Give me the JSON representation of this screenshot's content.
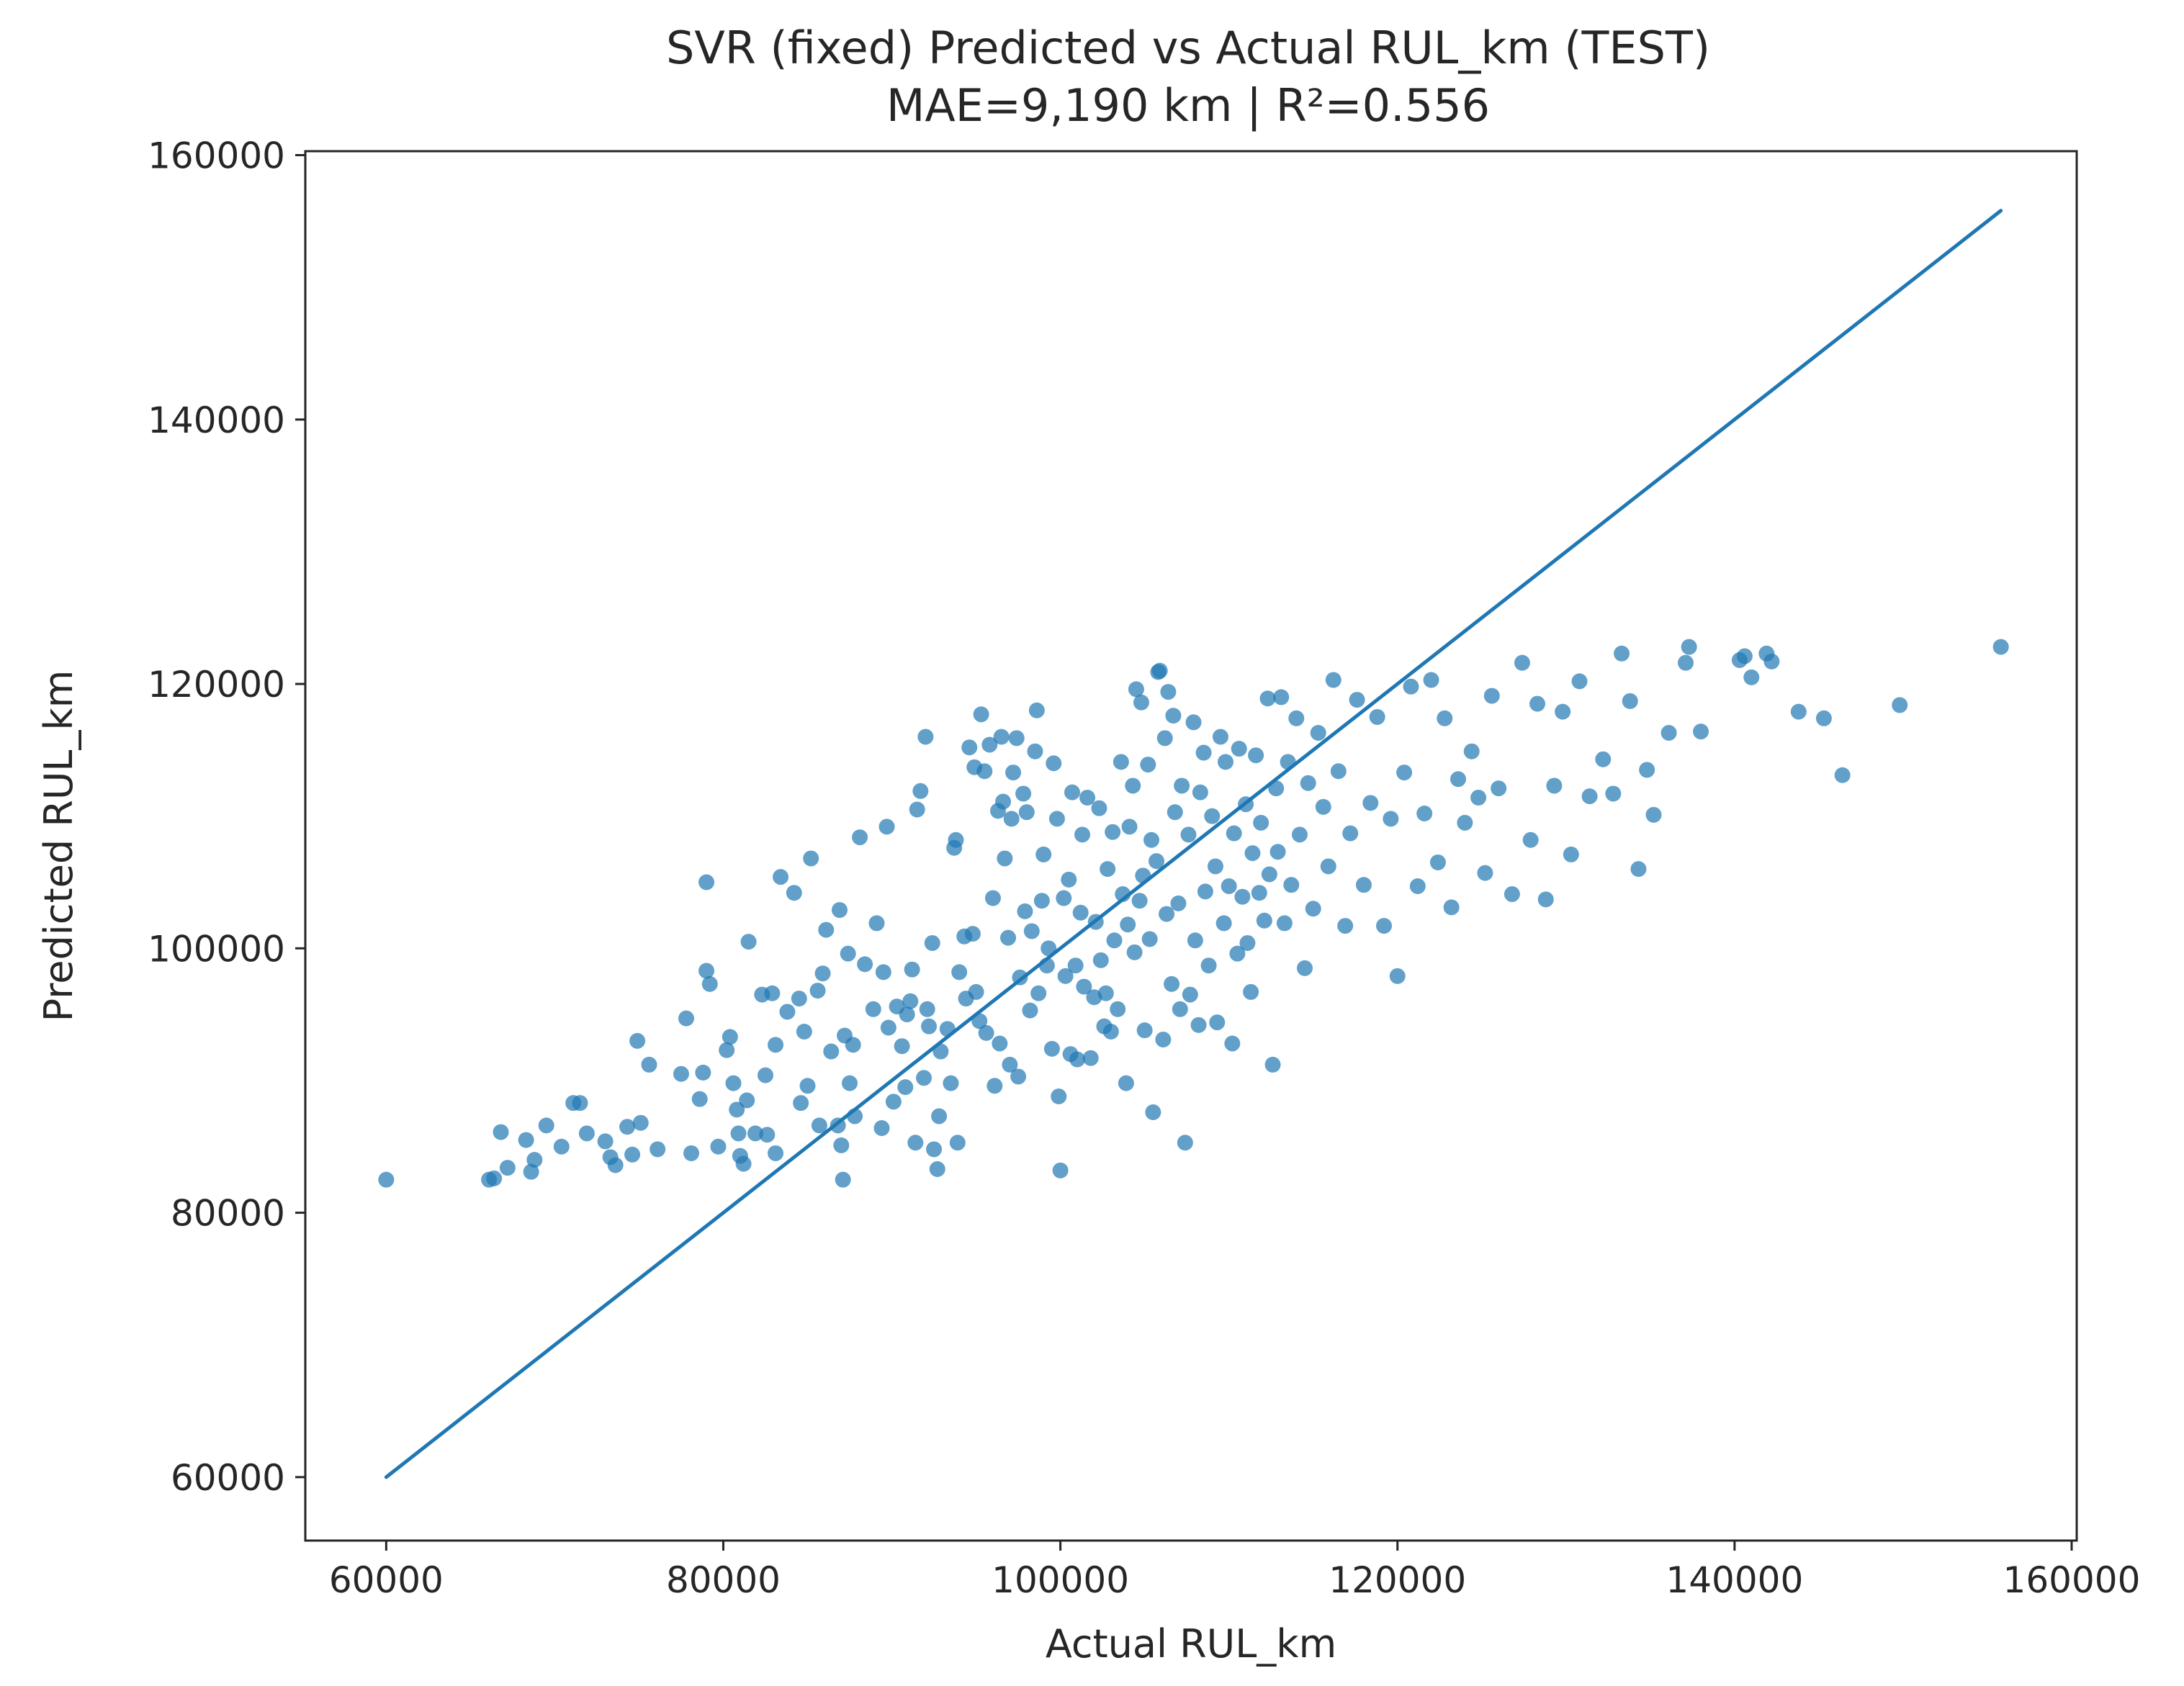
{
  "chart_data": {
    "type": "scatter",
    "title": "SVR (fixed) Predicted vs Actual RUL_km (TEST)",
    "subtitle": "MAE=9,190 km | R²=0.556",
    "xlabel": "Actual RUL_km",
    "ylabel": "Predicted RUL_km",
    "xlim": [
      55200,
      160300
    ],
    "ylim": [
      55200,
      160300
    ],
    "xticks": [
      60000,
      80000,
      100000,
      120000,
      140000,
      160000
    ],
    "yticks": [
      60000,
      80000,
      100000,
      120000,
      140000,
      160000
    ],
    "grid": false,
    "legend": "none",
    "colors": {
      "points": "#1f77b4",
      "line": "#1f77b4",
      "axes": "#262626"
    },
    "reference_line": {
      "name": "ideal y=x",
      "x": [
        60000,
        155800
      ],
      "y": [
        60000,
        155800
      ]
    },
    "series": [
      {
        "name": "test predictions",
        "points": [
          [
            60000,
            82500
          ],
          [
            66100,
            82500
          ],
          [
            66400,
            82600
          ],
          [
            66800,
            86100
          ],
          [
            67200,
            83400
          ],
          [
            68300,
            85500
          ],
          [
            68600,
            83100
          ],
          [
            68800,
            84000
          ],
          [
            69500,
            86600
          ],
          [
            70400,
            85000
          ],
          [
            71100,
            88300
          ],
          [
            71500,
            88300
          ],
          [
            71900,
            86000
          ],
          [
            73000,
            85400
          ],
          [
            73300,
            84200
          ],
          [
            73600,
            83600
          ],
          [
            74300,
            86500
          ],
          [
            74600,
            84400
          ],
          [
            74900,
            93000
          ],
          [
            75100,
            86800
          ],
          [
            75600,
            91200
          ],
          [
            76100,
            84800
          ],
          [
            77500,
            90500
          ],
          [
            77800,
            94700
          ],
          [
            78100,
            84500
          ],
          [
            78600,
            88600
          ],
          [
            78800,
            90600
          ],
          [
            79000,
            98300
          ],
          [
            79200,
            97300
          ],
          [
            79000,
            105000
          ],
          [
            79700,
            85000
          ],
          [
            80200,
            92300
          ],
          [
            80400,
            93300
          ],
          [
            80600,
            89800
          ],
          [
            80800,
            87800
          ],
          [
            80900,
            86000
          ],
          [
            81000,
            84300
          ],
          [
            81200,
            83700
          ],
          [
            81400,
            88500
          ],
          [
            81500,
            100500
          ],
          [
            81900,
            86000
          ],
          [
            82300,
            96500
          ],
          [
            82600,
            85900
          ],
          [
            82500,
            90400
          ],
          [
            82900,
            96600
          ],
          [
            83100,
            92700
          ],
          [
            83100,
            84500
          ],
          [
            83400,
            105400
          ],
          [
            83800,
            95200
          ],
          [
            84200,
            104200
          ],
          [
            84500,
            96200
          ],
          [
            84600,
            88300
          ],
          [
            84800,
            93700
          ],
          [
            85000,
            89600
          ],
          [
            85200,
            106800
          ],
          [
            85600,
            96800
          ],
          [
            85700,
            86600
          ],
          [
            85900,
            98100
          ],
          [
            86100,
            101400
          ],
          [
            86400,
            92200
          ],
          [
            86800,
            86600
          ],
          [
            86900,
            102900
          ],
          [
            87000,
            85100
          ],
          [
            87100,
            82500
          ],
          [
            87200,
            93400
          ],
          [
            87400,
            99600
          ],
          [
            87500,
            89800
          ],
          [
            87700,
            92700
          ],
          [
            87800,
            87300
          ],
          [
            88100,
            108400
          ],
          [
            88400,
            98800
          ],
          [
            88900,
            95400
          ],
          [
            89100,
            101900
          ],
          [
            89400,
            86400
          ],
          [
            89500,
            98200
          ],
          [
            89700,
            109200
          ],
          [
            89800,
            94000
          ],
          [
            90100,
            88400
          ],
          [
            90300,
            95600
          ],
          [
            90600,
            92600
          ],
          [
            90800,
            89500
          ],
          [
            90900,
            95000
          ],
          [
            91100,
            96000
          ],
          [
            91200,
            98400
          ],
          [
            91400,
            85300
          ],
          [
            91500,
            110500
          ],
          [
            91700,
            111900
          ],
          [
            91900,
            90200
          ],
          [
            92000,
            116000
          ],
          [
            92100,
            95400
          ],
          [
            92200,
            94100
          ],
          [
            92400,
            100400
          ],
          [
            92500,
            84800
          ],
          [
            92700,
            83300
          ],
          [
            92800,
            87300
          ],
          [
            92900,
            92200
          ],
          [
            93300,
            93900
          ],
          [
            93500,
            89800
          ],
          [
            93700,
            107600
          ],
          [
            93800,
            108200
          ],
          [
            93900,
            85300
          ],
          [
            94000,
            98200
          ],
          [
            94300,
            100900
          ],
          [
            94400,
            96200
          ],
          [
            94600,
            115200
          ],
          [
            94800,
            101100
          ],
          [
            94900,
            113700
          ],
          [
            95000,
            96700
          ],
          [
            95200,
            94500
          ],
          [
            95300,
            117700
          ],
          [
            95500,
            113400
          ],
          [
            95600,
            93600
          ],
          [
            95800,
            115400
          ],
          [
            96000,
            103800
          ],
          [
            96100,
            89600
          ],
          [
            96300,
            110400
          ],
          [
            96400,
            92800
          ],
          [
            96500,
            116000
          ],
          [
            96600,
            111100
          ],
          [
            96700,
            106800
          ],
          [
            96900,
            100800
          ],
          [
            97000,
            91200
          ],
          [
            97100,
            109800
          ],
          [
            97200,
            113300
          ],
          [
            97400,
            115900
          ],
          [
            97500,
            90300
          ],
          [
            97600,
            97800
          ],
          [
            97800,
            111700
          ],
          [
            97900,
            102800
          ],
          [
            98000,
            110300
          ],
          [
            98200,
            95300
          ],
          [
            98300,
            101300
          ],
          [
            98500,
            114900
          ],
          [
            98600,
            118000
          ],
          [
            98700,
            96600
          ],
          [
            98900,
            103600
          ],
          [
            99000,
            107100
          ],
          [
            99200,
            98700
          ],
          [
            99300,
            100000
          ],
          [
            99500,
            92400
          ],
          [
            99600,
            114000
          ],
          [
            99800,
            109800
          ],
          [
            99900,
            88800
          ],
          [
            100000,
            83200
          ],
          [
            100200,
            103800
          ],
          [
            100300,
            97900
          ],
          [
            100500,
            105200
          ],
          [
            100600,
            92000
          ],
          [
            100700,
            111800
          ],
          [
            100900,
            98700
          ],
          [
            101000,
            91600
          ],
          [
            101200,
            102700
          ],
          [
            101300,
            108600
          ],
          [
            101400,
            97100
          ],
          [
            101600,
            111400
          ],
          [
            101800,
            91700
          ],
          [
            102000,
            96300
          ],
          [
            102100,
            102000
          ],
          [
            102300,
            110600
          ],
          [
            102400,
            99100
          ],
          [
            102600,
            94100
          ],
          [
            102700,
            96600
          ],
          [
            102800,
            106000
          ],
          [
            103000,
            93700
          ],
          [
            103100,
            108800
          ],
          [
            103200,
            100600
          ],
          [
            103400,
            95400
          ],
          [
            103600,
            114100
          ],
          [
            103700,
            104100
          ],
          [
            103900,
            89800
          ],
          [
            104000,
            101800
          ],
          [
            104100,
            109200
          ],
          [
            104300,
            112300
          ],
          [
            104400,
            99700
          ],
          [
            104500,
            119600
          ],
          [
            104700,
            103600
          ],
          [
            104800,
            118600
          ],
          [
            104900,
            105500
          ],
          [
            105000,
            93800
          ],
          [
            105200,
            113900
          ],
          [
            105300,
            100700
          ],
          [
            105400,
            108200
          ],
          [
            105500,
            87600
          ],
          [
            105700,
            106600
          ],
          [
            105800,
            120900
          ],
          [
            105900,
            121000
          ],
          [
            106100,
            93100
          ],
          [
            106200,
            115900
          ],
          [
            106300,
            102600
          ],
          [
            106400,
            119400
          ],
          [
            106600,
            97300
          ],
          [
            106700,
            117600
          ],
          [
            106800,
            110300
          ],
          [
            107000,
            103400
          ],
          [
            107100,
            95400
          ],
          [
            107200,
            112300
          ],
          [
            107400,
            85300
          ],
          [
            107600,
            108600
          ],
          [
            107700,
            96500
          ],
          [
            107900,
            117100
          ],
          [
            108000,
            100600
          ],
          [
            108200,
            94200
          ],
          [
            108300,
            111800
          ],
          [
            108500,
            114800
          ],
          [
            108600,
            104300
          ],
          [
            108800,
            98700
          ],
          [
            109000,
            110000
          ],
          [
            109200,
            106200
          ],
          [
            109300,
            94400
          ],
          [
            109500,
            116000
          ],
          [
            109700,
            101900
          ],
          [
            109800,
            114100
          ],
          [
            110000,
            104700
          ],
          [
            110200,
            92800
          ],
          [
            110300,
            108700
          ],
          [
            110500,
            99600
          ],
          [
            110600,
            115100
          ],
          [
            110800,
            103900
          ],
          [
            111000,
            110900
          ],
          [
            111100,
            100400
          ],
          [
            111300,
            96700
          ],
          [
            111400,
            107200
          ],
          [
            111600,
            114600
          ],
          [
            111800,
            104200
          ],
          [
            111900,
            109500
          ],
          [
            112100,
            102100
          ],
          [
            112300,
            118900
          ],
          [
            112400,
            105600
          ],
          [
            112600,
            91200
          ],
          [
            112800,
            112100
          ],
          [
            112900,
            107300
          ],
          [
            113100,
            119000
          ],
          [
            113300,
            101900
          ],
          [
            113500,
            114100
          ],
          [
            113700,
            104800
          ],
          [
            114000,
            117400
          ],
          [
            114200,
            108600
          ],
          [
            114500,
            98500
          ],
          [
            114700,
            112500
          ],
          [
            115000,
            103000
          ],
          [
            115300,
            116300
          ],
          [
            115600,
            110700
          ],
          [
            115900,
            106200
          ],
          [
            116200,
            120300
          ],
          [
            116500,
            113400
          ],
          [
            116900,
            101700
          ],
          [
            117200,
            108700
          ],
          [
            117600,
            118800
          ],
          [
            118000,
            104800
          ],
          [
            118400,
            111000
          ],
          [
            118800,
            117500
          ],
          [
            119200,
            101700
          ],
          [
            119600,
            109800
          ],
          [
            120000,
            97900
          ],
          [
            120400,
            113300
          ],
          [
            120800,
            119800
          ],
          [
            121200,
            104700
          ],
          [
            121600,
            110200
          ],
          [
            122000,
            120300
          ],
          [
            122400,
            106500
          ],
          [
            122800,
            117400
          ],
          [
            123200,
            103100
          ],
          [
            123600,
            112800
          ],
          [
            124000,
            109500
          ],
          [
            124400,
            114900
          ],
          [
            124800,
            111400
          ],
          [
            125200,
            105700
          ],
          [
            125600,
            119100
          ],
          [
            126000,
            112100
          ],
          [
            126800,
            104100
          ],
          [
            127400,
            121600
          ],
          [
            127900,
            108200
          ],
          [
            128300,
            118500
          ],
          [
            128800,
            103700
          ],
          [
            129300,
            112300
          ],
          [
            129800,
            117900
          ],
          [
            130300,
            107100
          ],
          [
            130800,
            120200
          ],
          [
            131400,
            111500
          ],
          [
            132200,
            114300
          ],
          [
            132800,
            111700
          ],
          [
            133300,
            122300
          ],
          [
            133800,
            118700
          ],
          [
            134300,
            106000
          ],
          [
            134800,
            113500
          ],
          [
            135200,
            110100
          ],
          [
            136100,
            116300
          ],
          [
            137100,
            121600
          ],
          [
            137300,
            122800
          ],
          [
            138000,
            116400
          ],
          [
            140300,
            121800
          ],
          [
            140600,
            122100
          ],
          [
            141000,
            120500
          ],
          [
            141900,
            122300
          ],
          [
            142200,
            121700
          ],
          [
            143800,
            117900
          ],
          [
            145300,
            117400
          ],
          [
            146400,
            113100
          ],
          [
            149800,
            118400
          ],
          [
            155800,
            122800
          ]
        ]
      }
    ]
  }
}
